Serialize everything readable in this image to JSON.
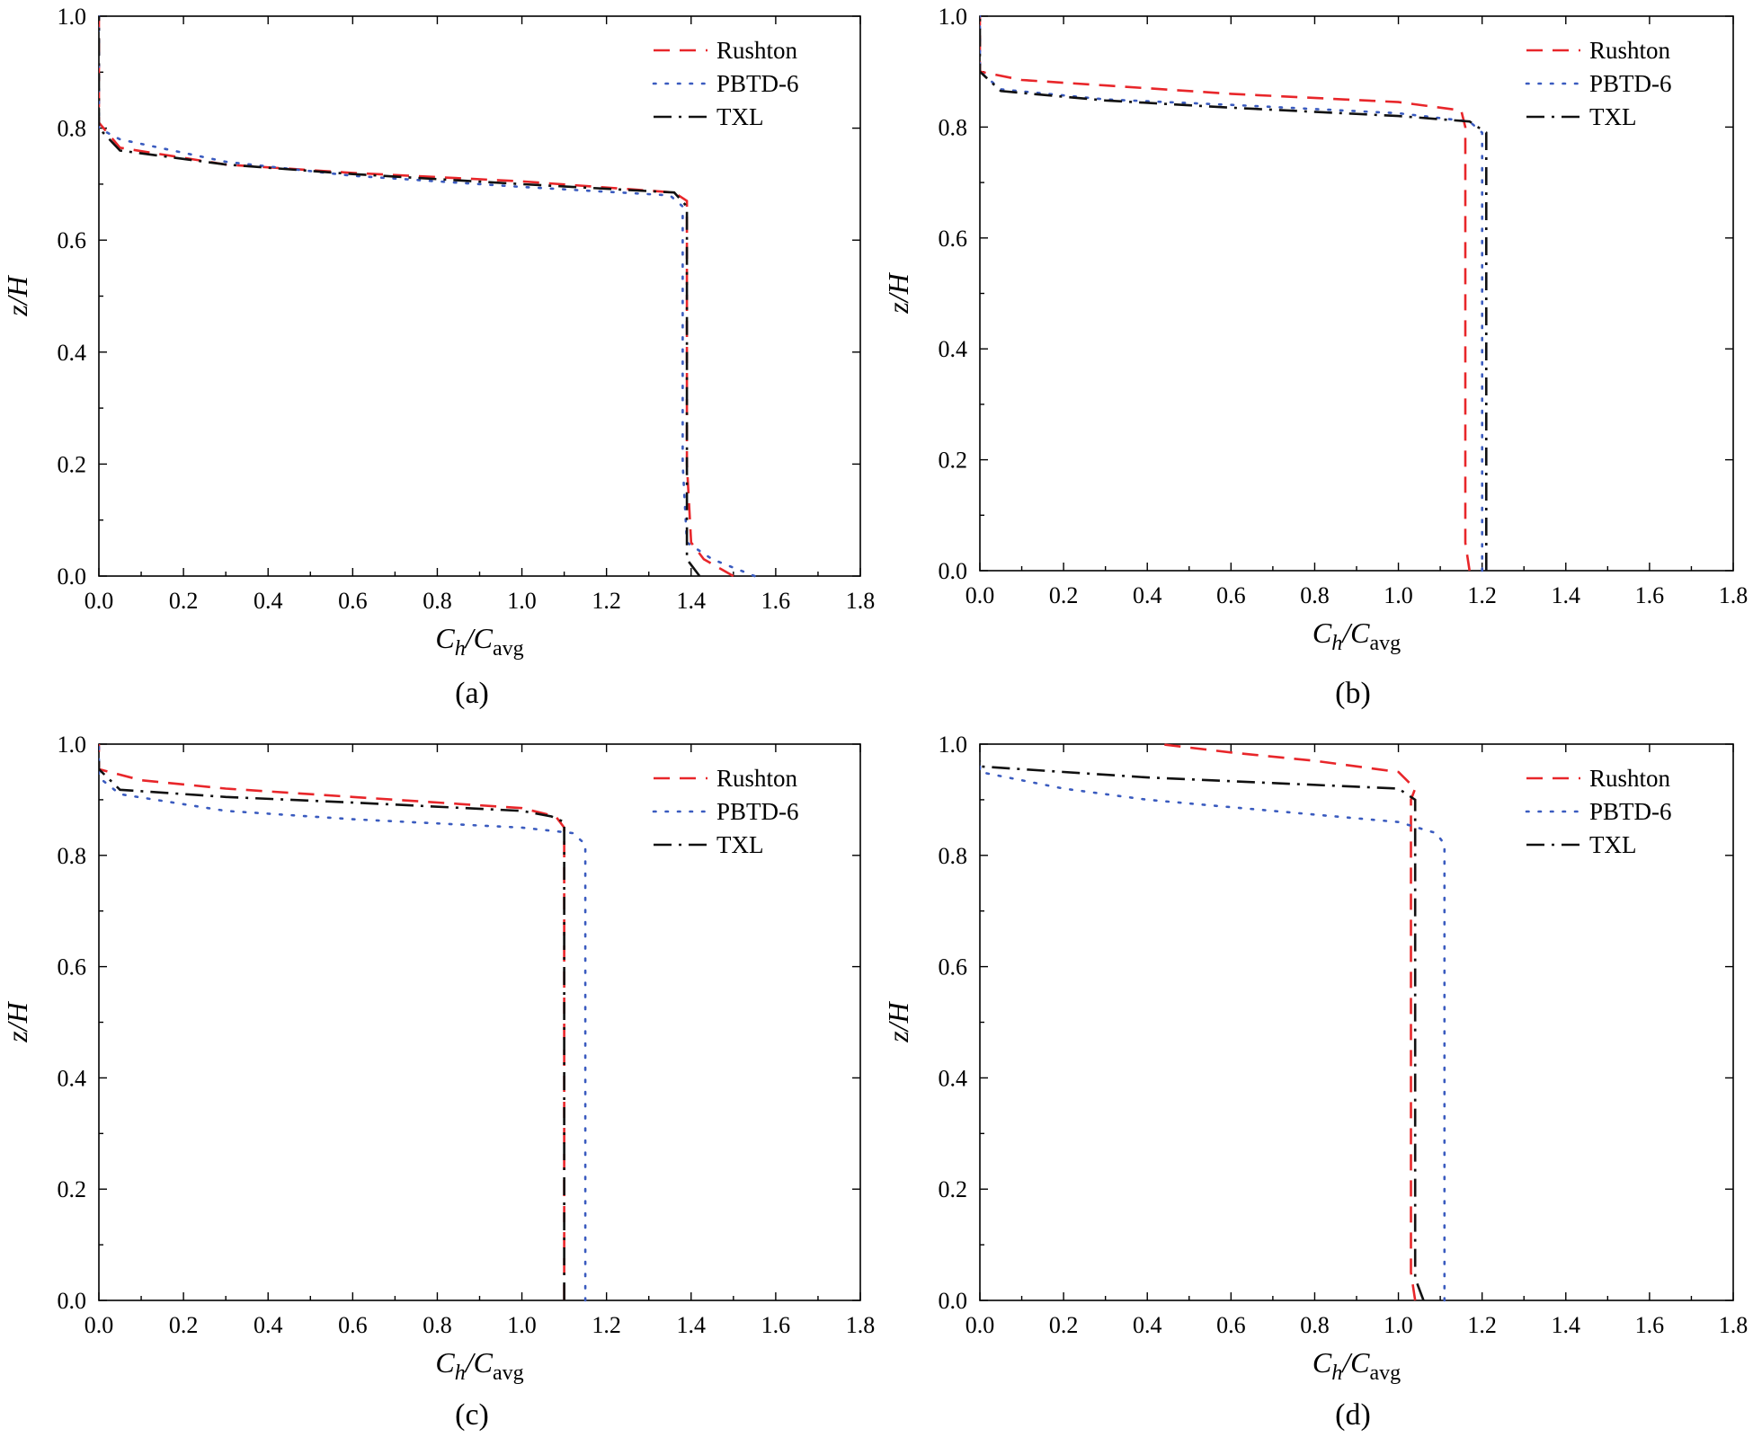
{
  "figure": {
    "description_labels": [
      "(a)",
      "(b)",
      "(c)",
      "(d)"
    ]
  },
  "styles": {
    "Rushton": {
      "color": "#e8262a",
      "dash": "dashed"
    },
    "PBTD-6": {
      "color": "#3a5bbf",
      "dash": "dotted"
    },
    "TXL": {
      "color": "#111111",
      "dash": "dashdot"
    }
  },
  "chart_data": [
    {
      "type": "line",
      "panel_label": "(a)",
      "xlabel_main": "C",
      "xlabel_sub1": "h",
      "xlabel_mid": "/C",
      "xlabel_sub2": "avg",
      "ylabel": "z/H",
      "xlim": [
        0.0,
        1.8
      ],
      "ylim": [
        0.0,
        1.0
      ],
      "xticks": [
        "0.0",
        "0.2",
        "0.4",
        "0.6",
        "0.8",
        "1.0",
        "1.2",
        "1.4",
        "1.6",
        "1.8"
      ],
      "yticks": [
        "0.0",
        "0.2",
        "0.4",
        "0.6",
        "0.8",
        "1.0"
      ],
      "legend": [
        "Rushton",
        "PBTD-6",
        "TXL"
      ],
      "series": [
        {
          "name": "Rushton",
          "points": [
            [
              1.5,
              0.0
            ],
            [
              1.43,
              0.03
            ],
            [
              1.4,
              0.06
            ],
            [
              1.39,
              0.2
            ],
            [
              1.39,
              0.4
            ],
            [
              1.39,
              0.6
            ],
            [
              1.39,
              0.67
            ],
            [
              1.36,
              0.685
            ],
            [
              1.0,
              0.705
            ],
            [
              0.6,
              0.72
            ],
            [
              0.3,
              0.735
            ],
            [
              0.05,
              0.765
            ],
            [
              0.0,
              0.81
            ],
            [
              0.0,
              0.85
            ],
            [
              0.0,
              1.0
            ]
          ]
        },
        {
          "name": "PBTD-6",
          "points": [
            [
              1.55,
              0.0
            ],
            [
              1.45,
              0.03
            ],
            [
              1.39,
              0.06
            ],
            [
              1.38,
              0.2
            ],
            [
              1.38,
              0.4
            ],
            [
              1.38,
              0.6
            ],
            [
              1.38,
              0.66
            ],
            [
              1.35,
              0.68
            ],
            [
              1.0,
              0.695
            ],
            [
              0.6,
              0.715
            ],
            [
              0.3,
              0.74
            ],
            [
              0.05,
              0.78
            ],
            [
              0.0,
              0.8
            ],
            [
              0.0,
              1.0
            ]
          ]
        },
        {
          "name": "TXL",
          "points": [
            [
              1.42,
              0.0
            ],
            [
              1.39,
              0.03
            ],
            [
              1.39,
              0.2
            ],
            [
              1.39,
              0.4
            ],
            [
              1.39,
              0.6
            ],
            [
              1.39,
              0.66
            ],
            [
              1.36,
              0.685
            ],
            [
              1.0,
              0.7
            ],
            [
              0.6,
              0.718
            ],
            [
              0.3,
              0.735
            ],
            [
              0.05,
              0.76
            ],
            [
              0.0,
              0.8
            ],
            [
              0.0,
              0.85
            ],
            [
              0.0,
              1.0
            ]
          ]
        }
      ]
    },
    {
      "type": "line",
      "panel_label": "(b)",
      "xlabel_main": "C",
      "xlabel_sub1": "h",
      "xlabel_mid": "/C",
      "xlabel_sub2": "avg",
      "ylabel": "z/H",
      "xlim": [
        0.0,
        1.8
      ],
      "ylim": [
        0.0,
        1.0
      ],
      "xticks": [
        "0.0",
        "0.2",
        "0.4",
        "0.6",
        "0.8",
        "1.0",
        "1.2",
        "1.4",
        "1.6",
        "1.8"
      ],
      "yticks": [
        "0.0",
        "0.2",
        "0.4",
        "0.6",
        "0.8",
        "1.0"
      ],
      "legend": [
        "Rushton",
        "PBTD-6",
        "TXL"
      ],
      "series": [
        {
          "name": "Rushton",
          "points": [
            [
              1.17,
              0.0
            ],
            [
              1.16,
              0.05
            ],
            [
              1.16,
              0.4
            ],
            [
              1.16,
              0.8
            ],
            [
              1.15,
              0.83
            ],
            [
              1.0,
              0.845
            ],
            [
              0.6,
              0.86
            ],
            [
              0.3,
              0.875
            ],
            [
              0.1,
              0.885
            ],
            [
              0.0,
              0.9
            ],
            [
              0.0,
              0.94
            ],
            [
              0.0,
              1.0
            ]
          ]
        },
        {
          "name": "PBTD-6",
          "points": [
            [
              1.2,
              0.0
            ],
            [
              1.2,
              0.4
            ],
            [
              1.2,
              0.79
            ],
            [
              1.17,
              0.81
            ],
            [
              1.0,
              0.825
            ],
            [
              0.6,
              0.84
            ],
            [
              0.3,
              0.85
            ],
            [
              0.05,
              0.868
            ],
            [
              0.0,
              0.9
            ],
            [
              0.0,
              1.0
            ]
          ]
        },
        {
          "name": "TXL",
          "points": [
            [
              1.21,
              0.0
            ],
            [
              1.21,
              0.4
            ],
            [
              1.21,
              0.79
            ],
            [
              1.17,
              0.81
            ],
            [
              1.0,
              0.82
            ],
            [
              0.6,
              0.835
            ],
            [
              0.3,
              0.848
            ],
            [
              0.05,
              0.865
            ],
            [
              0.0,
              0.9
            ],
            [
              0.0,
              1.0
            ]
          ]
        }
      ]
    },
    {
      "type": "line",
      "panel_label": "(c)",
      "xlabel_main": "C",
      "xlabel_sub1": "h",
      "xlabel_mid": "/C",
      "xlabel_sub2": "avg",
      "ylabel": "z/H",
      "xlim": [
        0.0,
        1.8
      ],
      "ylim": [
        0.0,
        1.0
      ],
      "xticks": [
        "0.0",
        "0.2",
        "0.4",
        "0.6",
        "0.8",
        "1.0",
        "1.2",
        "1.4",
        "1.6",
        "1.8"
      ],
      "yticks": [
        "0.0",
        "0.2",
        "0.4",
        "0.6",
        "0.8",
        "1.0"
      ],
      "legend": [
        "Rushton",
        "PBTD-6",
        "TXL"
      ],
      "series": [
        {
          "name": "Rushton",
          "points": [
            [
              1.1,
              0.0
            ],
            [
              1.1,
              0.4
            ],
            [
              1.1,
              0.85
            ],
            [
              1.08,
              0.87
            ],
            [
              1.0,
              0.885
            ],
            [
              0.6,
              0.905
            ],
            [
              0.3,
              0.92
            ],
            [
              0.1,
              0.935
            ],
            [
              0.0,
              0.955
            ],
            [
              0.0,
              1.0
            ]
          ]
        },
        {
          "name": "PBTD-6",
          "points": [
            [
              1.15,
              0.0
            ],
            [
              1.15,
              0.4
            ],
            [
              1.15,
              0.82
            ],
            [
              1.12,
              0.84
            ],
            [
              1.0,
              0.85
            ],
            [
              0.6,
              0.865
            ],
            [
              0.3,
              0.88
            ],
            [
              0.05,
              0.91
            ],
            [
              0.0,
              0.94
            ],
            [
              0.0,
              1.0
            ]
          ]
        },
        {
          "name": "TXL",
          "points": [
            [
              1.1,
              0.0
            ],
            [
              1.1,
              0.4
            ],
            [
              1.1,
              0.86
            ],
            [
              1.07,
              0.87
            ],
            [
              1.0,
              0.88
            ],
            [
              0.6,
              0.895
            ],
            [
              0.3,
              0.905
            ],
            [
              0.05,
              0.918
            ],
            [
              0.0,
              0.955
            ],
            [
              0.0,
              0.97
            ]
          ]
        }
      ]
    },
    {
      "type": "line",
      "panel_label": "(d)",
      "xlabel_main": "C",
      "xlabel_sub1": "h",
      "xlabel_mid": "/C",
      "xlabel_sub2": "avg",
      "ylabel": "z/H",
      "xlim": [
        0.0,
        1.8
      ],
      "ylim": [
        0.0,
        1.0
      ],
      "xticks": [
        "0.0",
        "0.2",
        "0.4",
        "0.6",
        "0.8",
        "1.0",
        "1.2",
        "1.4",
        "1.6",
        "1.8"
      ],
      "yticks": [
        "0.0",
        "0.2",
        "0.4",
        "0.6",
        "0.8",
        "1.0"
      ],
      "legend": [
        "Rushton",
        "PBTD-6",
        "TXL"
      ],
      "series": [
        {
          "name": "Rushton",
          "points": [
            [
              1.04,
              0.0
            ],
            [
              1.03,
              0.05
            ],
            [
              1.03,
              0.4
            ],
            [
              1.03,
              0.9
            ],
            [
              1.04,
              0.92
            ],
            [
              1.0,
              0.95
            ],
            [
              0.8,
              0.97
            ],
            [
              0.6,
              0.985
            ],
            [
              0.43,
              1.0
            ]
          ]
        },
        {
          "name": "PBTD-6",
          "points": [
            [
              1.11,
              0.0
            ],
            [
              1.11,
              0.4
            ],
            [
              1.11,
              0.82
            ],
            [
              1.09,
              0.84
            ],
            [
              1.0,
              0.86
            ],
            [
              0.7,
              0.88
            ],
            [
              0.4,
              0.9
            ],
            [
              0.2,
              0.92
            ],
            [
              0.0,
              0.95
            ],
            [
              0.0,
              0.97
            ]
          ]
        },
        {
          "name": "TXL",
          "points": [
            [
              1.06,
              0.0
            ],
            [
              1.04,
              0.04
            ],
            [
              1.04,
              0.4
            ],
            [
              1.04,
              0.9
            ],
            [
              1.0,
              0.92
            ],
            [
              0.7,
              0.93
            ],
            [
              0.4,
              0.94
            ],
            [
              0.2,
              0.95
            ],
            [
              0.0,
              0.96
            ],
            [
              0.0,
              0.97
            ]
          ]
        }
      ]
    }
  ]
}
